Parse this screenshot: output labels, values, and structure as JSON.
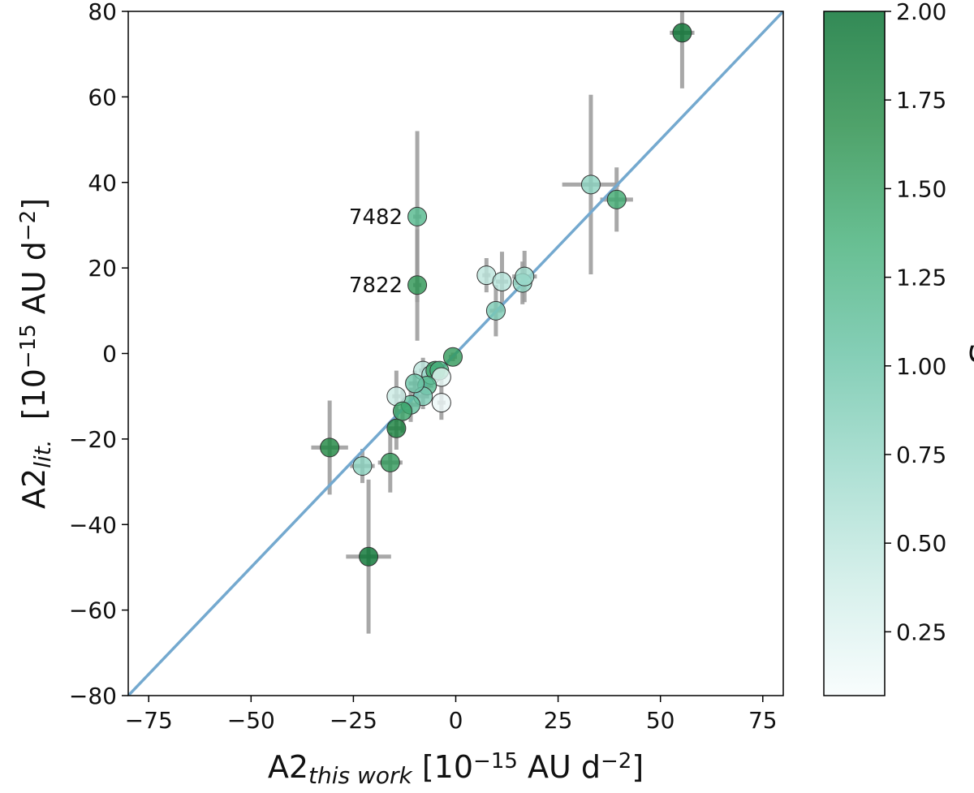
{
  "chart_data": {
    "type": "scatter",
    "x": [
      55.3,
      33,
      39.3,
      -9.4,
      -9.4,
      7.5,
      11.3,
      16.3,
      16.8,
      9.8,
      -0.7,
      -8,
      -6,
      -5,
      -4,
      -3.5,
      -3.5,
      -7,
      -8,
      -10,
      -11,
      -14.5,
      -13,
      -14.5,
      -16,
      -22.8,
      -30.8,
      -21.3
    ],
    "y": [
      75,
      39.5,
      36,
      32,
      16,
      18.3,
      16.8,
      16.5,
      18,
      10,
      -0.8,
      -4,
      -5,
      -4,
      -4,
      -5.5,
      -11.5,
      -7.5,
      -10,
      -7,
      -12,
      -10,
      -13.5,
      -17.5,
      -25.5,
      -26.3,
      -22,
      -47.5
    ],
    "xerr": [
      3,
      7,
      4,
      1,
      1,
      1,
      1.5,
      2,
      3,
      1.5,
      1,
      1,
      1,
      1,
      1.5,
      1,
      1,
      1,
      1.5,
      1.5,
      2,
      1,
      1.5,
      2,
      3,
      3,
      4.5,
      5.5
    ],
    "yerr": [
      13,
      21,
      7.5,
      20,
      13,
      4,
      7,
      5,
      6,
      6,
      1,
      3,
      3,
      2,
      2,
      2,
      4,
      3,
      3,
      3,
      4,
      6,
      5,
      5,
      7,
      4,
      11,
      18
    ],
    "s": [
      1.95,
      0.8,
      1.4,
      1.2,
      1.6,
      0.5,
      0.55,
      0.8,
      0.7,
      0.9,
      1.55,
      0.5,
      0.7,
      1.5,
      1.3,
      0.2,
      0.15,
      1.2,
      0.9,
      1.0,
      1.1,
      0.4,
      1.45,
      1.8,
      1.55,
      0.8,
      1.75,
      1.95
    ],
    "errorbar_color": "#9a9a9a",
    "reference_line": {
      "x": [
        -80,
        80
      ],
      "y": [
        -80,
        80
      ],
      "color": "#74a9cf"
    },
    "annotations": [
      {
        "text": "7482",
        "x": -9.4,
        "y": 32
      },
      {
        "text": "7822",
        "x": -9.4,
        "y": 16
      }
    ],
    "xlabel": [
      {
        "text": "A2",
        "style": "normal"
      },
      {
        "text": "this work",
        "style": "sub"
      },
      {
        "text": " [10",
        "style": "normal"
      },
      {
        "text": "−15",
        "style": "sup"
      },
      {
        "text": " AU d",
        "style": "normal"
      },
      {
        "text": "−2",
        "style": "sup"
      },
      {
        "text": "]",
        "style": "normal"
      }
    ],
    "ylabel": [
      {
        "text": "A2",
        "style": "normal"
      },
      {
        "text": "lit.",
        "style": "sub"
      },
      {
        "text": "  [10",
        "style": "normal"
      },
      {
        "text": "−15",
        "style": "sup"
      },
      {
        "text": " AU d",
        "style": "normal"
      },
      {
        "text": "−2",
        "style": "sup"
      },
      {
        "text": "]",
        "style": "normal"
      }
    ],
    "xlim": [
      -80,
      80
    ],
    "ylim": [
      -80,
      80
    ],
    "xticks": [
      {
        "value": -75,
        "label": "−75"
      },
      {
        "value": -50,
        "label": "−50"
      },
      {
        "value": -25,
        "label": "−25"
      },
      0,
      25,
      50,
      75
    ],
    "yticks": [
      {
        "value": -80,
        "label": "−80"
      },
      {
        "value": -60,
        "label": "−60"
      },
      {
        "value": -40,
        "label": "−40"
      },
      {
        "value": -20,
        "label": "−20"
      },
      0,
      20,
      40,
      60,
      80
    ],
    "colorbar": {
      "label": "S",
      "clim": [
        0.07,
        2.0
      ],
      "ticks": [
        {
          "value": 0.25,
          "label": "0.25"
        },
        {
          "value": 0.5,
          "label": "0.50"
        },
        {
          "value": 0.75,
          "label": "0.75"
        },
        {
          "value": 1.0,
          "label": "1.00"
        },
        {
          "value": 1.25,
          "label": "1.25"
        },
        {
          "value": 1.5,
          "label": "1.50"
        },
        {
          "value": 1.75,
          "label": "1.75"
        },
        {
          "value": 2.0,
          "label": "2.00"
        }
      ],
      "colormap": [
        "#f7fcfd",
        "#ccece6",
        "#99d8c9",
        "#66c2a4",
        "#41ae76",
        "#238b45",
        "#006d2c"
      ],
      "alpha": 0.65
    }
  }
}
